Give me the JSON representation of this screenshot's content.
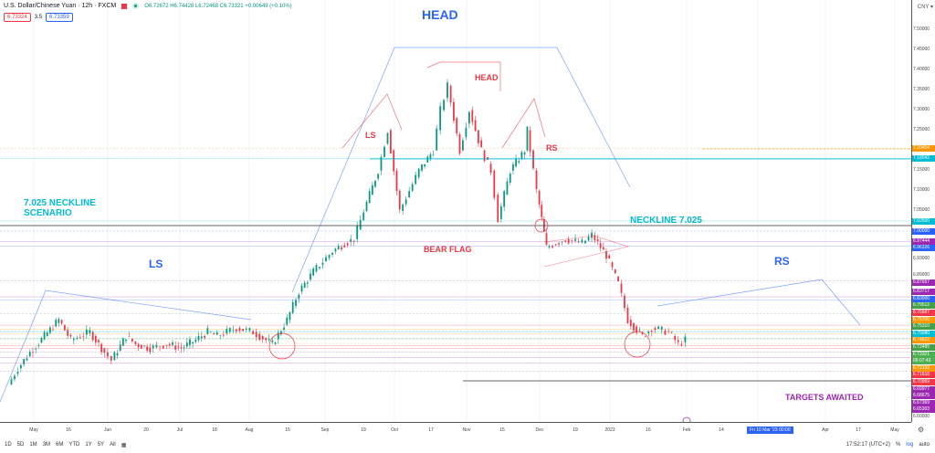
{
  "header": {
    "title": "U.S. Dollar/Chinese Yuan · 12h · FXCM",
    "ohlc": "O6.72672 H6.74428 L6.72468 C6.73321 +0.00649 (+0.10%)",
    "sell_price": "6.73324",
    "spread": "3.5",
    "buy_price": "6.73359",
    "currency": "CNY ▾"
  },
  "annotations": {
    "head_top": "HEAD",
    "head": "HEAD",
    "ls_small": "LS",
    "rs_small": "RS",
    "neckline_scenario": "7.025 NECKLINE\nSCENARIO",
    "neckline": "NECKLINE 7.025",
    "bear_flag": "BEAR FLAG",
    "ls": "LS",
    "rs": "RS",
    "targets": "TARGETS AWAITED"
  },
  "price_ticks": [
    "7.50000",
    "7.45000",
    "7.40000",
    "7.35000",
    "7.30000",
    "7.25000",
    "7.15000",
    "7.10000",
    "7.05000",
    "6.93000",
    "6.89000",
    "6.60000"
  ],
  "price_tick_values": [
    7.5,
    7.45,
    7.4,
    7.35,
    7.3,
    7.25,
    7.15,
    7.1,
    7.05,
    6.93,
    6.89,
    6.6
  ],
  "price_labels": [
    {
      "text": "7.20454",
      "value": 7.20454,
      "color": "#ff9800"
    },
    {
      "text": "7.18042",
      "value": 7.18042,
      "color": "#00bcd4"
    },
    {
      "text": "7.02500",
      "value": 7.025,
      "color": "#00bcd4"
    },
    {
      "text": "7.00000",
      "value": 7.0,
      "color": "#2962ff"
    },
    {
      "text": "6.97444",
      "value": 6.97444,
      "color": "#9c27b0"
    },
    {
      "text": "6.96326",
      "value": 6.96326,
      "color": "#2962ff"
    },
    {
      "text": "6.87657",
      "value": 6.87657,
      "color": "#9c27b0"
    },
    {
      "text": "6.83717",
      "value": 6.83717,
      "color": "#9c27b0"
    },
    {
      "text": "6.83000",
      "value": 6.83,
      "color": "#2962ff"
    },
    {
      "text": "6.79512",
      "value": 6.79512,
      "color": "#43a047"
    },
    {
      "text": "6.76687",
      "value": 6.76687,
      "color": "#f23645"
    },
    {
      "text": "6.75700",
      "value": 6.757,
      "color": "#ff9800"
    },
    {
      "text": "6.75310",
      "value": 6.7531,
      "color": "#43a047"
    },
    {
      "text": "6.75080",
      "value": 6.7508,
      "color": "#00bcd4"
    },
    {
      "text": "6.74622",
      "value": 6.74622,
      "color": "#ff9800"
    },
    {
      "text": "6.73485",
      "value": 6.73485,
      "color": "#43a047"
    },
    {
      "text": "6.73321",
      "value": 6.73321,
      "color": "#4caf50"
    },
    {
      "text": "06:07:43",
      "value": 6.7242,
      "color": "#4caf50"
    },
    {
      "text": "6.72159",
      "value": 6.72159,
      "color": "#ff9800"
    },
    {
      "text": "6.71618",
      "value": 6.71618,
      "color": "#f23645"
    },
    {
      "text": "6.70969",
      "value": 6.70969,
      "color": "#f23645"
    },
    {
      "text": "6.69977",
      "value": 6.69977,
      "color": "#9c27b0"
    },
    {
      "text": "6.68675",
      "value": 6.68675,
      "color": "#9c27b0"
    },
    {
      "text": "6.67369",
      "value": 6.67369,
      "color": "#9c27b0"
    },
    {
      "text": "6.65303",
      "value": 6.65303,
      "color": "#9c27b0"
    }
  ],
  "time_labels": [
    "May",
    "16",
    "Jun",
    "20",
    "Jul",
    "18",
    "Aug",
    "15",
    "Sep",
    "19",
    "Oct",
    "17",
    "Nov",
    "15",
    "Dec",
    "19",
    "2023",
    "16",
    "Feb",
    "14",
    "Apr",
    "17",
    "May"
  ],
  "crosshair_time": "Fri 10 Mar '23  00:00",
  "price_path": [
    [
      -10,
      6.62
    ],
    [
      -6,
      6.66
    ],
    [
      -1,
      6.7
    ],
    [
      5,
      6.74
    ],
    [
      11,
      6.78
    ],
    [
      16,
      6.73
    ],
    [
      24,
      6.75
    ],
    [
      30,
      6.7
    ],
    [
      33,
      6.68
    ],
    [
      39,
      6.74
    ],
    [
      43,
      6.72
    ],
    [
      49,
      6.71
    ],
    [
      56,
      6.72
    ],
    [
      62,
      6.71
    ],
    [
      68,
      6.73
    ],
    [
      73,
      6.75
    ],
    [
      77,
      6.74
    ],
    [
      85,
      6.76
    ],
    [
      92,
      6.75
    ],
    [
      100,
      6.72
    ],
    [
      106,
      6.78
    ],
    [
      111,
      6.85
    ],
    [
      117,
      6.9
    ],
    [
      125,
      6.95
    ],
    [
      130,
      6.97
    ],
    [
      134,
      6.98
    ],
    [
      138,
      7.05
    ],
    [
      144,
      7.15
    ],
    [
      148,
      7.25
    ],
    [
      153,
      7.05
    ],
    [
      161,
      7.15
    ],
    [
      167,
      7.2
    ],
    [
      170,
      7.3
    ],
    [
      173,
      7.36
    ],
    [
      178,
      7.2
    ],
    [
      182,
      7.3
    ],
    [
      187,
      7.2
    ],
    [
      191,
      7.15
    ],
    [
      194,
      7.03
    ],
    [
      199,
      7.15
    ],
    [
      205,
      7.2
    ],
    [
      206,
      7.25
    ],
    [
      210,
      7.1
    ],
    [
      212,
      7.03
    ],
    [
      214,
      6.96
    ],
    [
      222,
      6.98
    ],
    [
      229,
      6.97
    ],
    [
      233,
      6.99
    ],
    [
      239,
      6.94
    ],
    [
      244,
      6.87
    ],
    [
      248,
      6.78
    ],
    [
      254,
      6.74
    ],
    [
      258,
      6.76
    ],
    [
      265,
      6.75
    ],
    [
      269,
      6.72
    ],
    [
      272,
      6.73
    ]
  ],
  "toolbar": {
    "ranges": [
      "1D",
      "5D",
      "1M",
      "3M",
      "6M",
      "YTD",
      "1Y",
      "5Y",
      "All"
    ],
    "clock": "17:52:17 (UTC+2)",
    "percent": "%",
    "log": "log",
    "auto": "auto"
  }
}
